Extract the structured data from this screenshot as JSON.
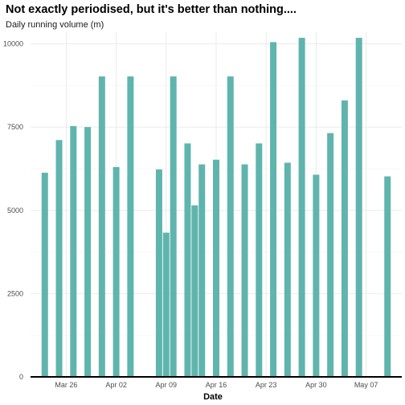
{
  "chart_data": {
    "type": "bar",
    "title": "Not exactly periodised, but it's better than nothing....",
    "subtitle": "Daily running volume (m)",
    "xlabel": "Date",
    "ylabel": "",
    "x_ticks": [
      {
        "date": "2023-03-26",
        "label": "Mar 26"
      },
      {
        "date": "2023-04-02",
        "label": "Apr 02"
      },
      {
        "date": "2023-04-09",
        "label": "Apr 09"
      },
      {
        "date": "2023-04-16",
        "label": "Apr 16"
      },
      {
        "date": "2023-04-23",
        "label": "Apr 23"
      },
      {
        "date": "2023-04-30",
        "label": "Apr 30"
      },
      {
        "date": "2023-05-07",
        "label": "May 07"
      }
    ],
    "y_ticks": [
      {
        "value": 0,
        "label": "0"
      },
      {
        "value": 2500,
        "label": "2500"
      },
      {
        "value": 5000,
        "label": "5000"
      },
      {
        "value": 7500,
        "label": "7500"
      },
      {
        "value": 10000,
        "label": "10000"
      }
    ],
    "xlim": [
      "2023-03-21",
      "2023-05-12"
    ],
    "ylim": [
      0,
      10350
    ],
    "grid": true,
    "bar_color": "#5fb5ad",
    "x": [
      "2023-03-23",
      "2023-03-25",
      "2023-03-27",
      "2023-03-29",
      "2023-03-31",
      "2023-04-02",
      "2023-04-04",
      "2023-04-08",
      "2023-04-09",
      "2023-04-10",
      "2023-04-12",
      "2023-04-13",
      "2023-04-14",
      "2023-04-16",
      "2023-04-18",
      "2023-04-20",
      "2023-04-22",
      "2023-04-24",
      "2023-04-26",
      "2023-04-28",
      "2023-04-30",
      "2023-05-02",
      "2023-05-04",
      "2023-05-06",
      "2023-05-10"
    ],
    "values": [
      6130,
      7110,
      7530,
      7500,
      9020,
      6300,
      9020,
      6230,
      4330,
      9020,
      7010,
      5150,
      6380,
      6520,
      9020,
      6380,
      7010,
      10050,
      6430,
      10180,
      6070,
      7320,
      8300,
      10180,
      6020
    ]
  }
}
